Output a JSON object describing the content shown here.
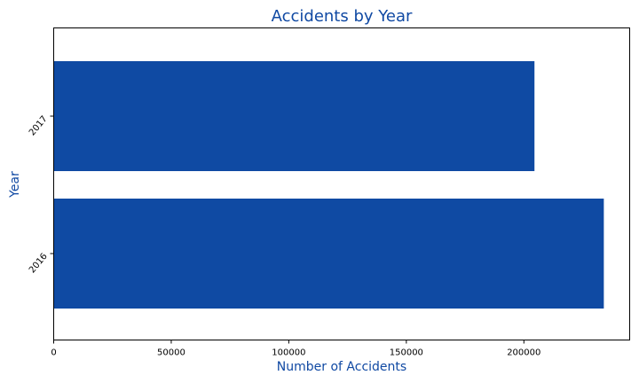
{
  "colors": {
    "bar": "#0f4aa3",
    "text_accent": "#1049a3",
    "axis": "#000000",
    "background": "#ffffff"
  },
  "chart_data": {
    "type": "bar",
    "orientation": "horizontal",
    "title": "Accidents by Year",
    "xlabel": "Number of Accidents",
    "ylabel": "Year",
    "categories": [
      "2016",
      "2017"
    ],
    "values": [
      234000,
      204500
    ],
    "xlim": [
      0,
      245000
    ],
    "x_ticks": [
      0,
      50000,
      100000,
      150000,
      200000
    ],
    "x_tick_labels": [
      "0",
      "50000",
      "100000",
      "150000",
      "200000"
    ],
    "grid": false,
    "legend": "none"
  }
}
